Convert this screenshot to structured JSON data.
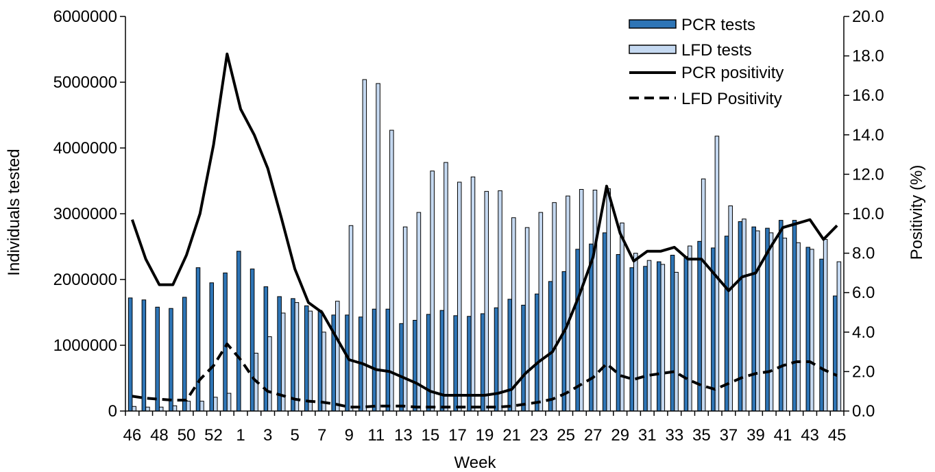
{
  "chart_data": {
    "type": "bar",
    "title": "",
    "xlabel": "Week",
    "ylabel": "Individuals tested",
    "y2label": "Positivity (%)",
    "ylim": [
      0,
      6000000
    ],
    "y2lim": [
      0,
      20
    ],
    "yticks": [
      0,
      1000000,
      2000000,
      3000000,
      4000000,
      5000000,
      6000000
    ],
    "y2ticks": [
      "0.0",
      "2.0",
      "4.0",
      "6.0",
      "8.0",
      "10.0",
      "12.0",
      "14.0",
      "16.0",
      "18.0",
      "20.0"
    ],
    "legend_position": "top-right",
    "categories": [
      "46",
      "47",
      "48",
      "49",
      "50",
      "51",
      "52",
      "53",
      "1",
      "2",
      "3",
      "4",
      "5",
      "6",
      "7",
      "8",
      "9",
      "10",
      "11",
      "12",
      "13",
      "14",
      "15",
      "16",
      "17",
      "18",
      "19",
      "20",
      "21",
      "22",
      "23",
      "24",
      "25",
      "26",
      "27",
      "28",
      "29",
      "30",
      "31",
      "32",
      "33",
      "34",
      "35",
      "36",
      "37",
      "38",
      "39",
      "40",
      "41",
      "42",
      "43",
      "44",
      "45"
    ],
    "series": [
      {
        "name": "PCR tests",
        "kind": "bar",
        "axis": "left",
        "color": "#2e75b6",
        "values": [
          1720000,
          1690000,
          1580000,
          1560000,
          1730000,
          2180000,
          1950000,
          2100000,
          2430000,
          2160000,
          1890000,
          1740000,
          1710000,
          1600000,
          1530000,
          1460000,
          1460000,
          1430000,
          1550000,
          1550000,
          1330000,
          1380000,
          1470000,
          1530000,
          1450000,
          1440000,
          1480000,
          1570000,
          1700000,
          1610000,
          1780000,
          1970000,
          2120000,
          2460000,
          2540000,
          2710000,
          2380000,
          2180000,
          2200000,
          2270000,
          2370000,
          2350000,
          2580000,
          2480000,
          2660000,
          2880000,
          2800000,
          2780000,
          2900000,
          2900000,
          2490000,
          2310000,
          1750000
        ]
      },
      {
        "name": "LFD tests",
        "kind": "bar",
        "axis": "left",
        "color": "#c5d9f1",
        "values": [
          70000,
          60000,
          60000,
          80000,
          150000,
          150000,
          210000,
          270000,
          0,
          880000,
          1130000,
          1490000,
          1650000,
          1520000,
          1200000,
          1670000,
          2820000,
          5040000,
          4980000,
          4270000,
          2800000,
          3020000,
          3650000,
          3780000,
          3480000,
          3560000,
          3340000,
          3350000,
          2940000,
          2790000,
          3020000,
          3170000,
          3270000,
          3370000,
          3360000,
          3380000,
          2860000,
          2400000,
          2290000,
          2230000,
          2110000,
          2510000,
          3530000,
          4180000,
          3120000,
          2920000,
          2740000,
          2710000,
          2630000,
          2560000,
          2460000,
          2610000,
          2270000
        ]
      },
      {
        "name": "PCR positivity",
        "kind": "line",
        "axis": "right",
        "color": "#000000",
        "dash": "solid",
        "values": [
          9.7,
          7.7,
          6.4,
          6.4,
          7.9,
          10.0,
          13.5,
          18.1,
          15.3,
          14.0,
          12.3,
          9.8,
          7.2,
          5.5,
          5.0,
          3.8,
          2.6,
          2.4,
          2.1,
          2.0,
          1.7,
          1.4,
          1.0,
          0.8,
          0.8,
          0.8,
          0.8,
          0.9,
          1.1,
          1.9,
          2.5,
          3.0,
          4.2,
          5.9,
          7.8,
          11.4,
          9.0,
          7.6,
          8.1,
          8.1,
          8.3,
          7.7,
          7.7,
          6.9,
          6.1,
          6.8,
          7.0,
          8.2,
          9.3,
          9.5,
          9.7,
          8.7,
          9.4
        ]
      },
      {
        "name": "LFD Positivity",
        "kind": "line",
        "axis": "right",
        "color": "#000000",
        "dash": "dashed",
        "values": [
          0.75,
          0.65,
          0.6,
          0.55,
          0.55,
          1.6,
          2.3,
          3.4,
          2.6,
          1.6,
          1.0,
          0.8,
          0.6,
          0.5,
          0.45,
          0.35,
          0.2,
          0.2,
          0.25,
          0.25,
          0.25,
          0.2,
          0.2,
          0.2,
          0.2,
          0.2,
          0.2,
          0.2,
          0.25,
          0.35,
          0.45,
          0.6,
          0.9,
          1.3,
          1.7,
          2.4,
          1.8,
          1.6,
          1.8,
          1.9,
          2.0,
          1.6,
          1.3,
          1.1,
          1.4,
          1.7,
          1.9,
          2.0,
          2.3,
          2.5,
          2.5,
          2.1,
          1.8
        ]
      }
    ],
    "xtick_labels": [
      "46",
      "",
      "48",
      "",
      "50",
      "",
      "52",
      "",
      "1",
      "",
      "3",
      "",
      "5",
      "",
      "7",
      "",
      "9",
      "",
      "11",
      "",
      "13",
      "",
      "15",
      "",
      "17",
      "",
      "19",
      "",
      "21",
      "",
      "23",
      "",
      "25",
      "",
      "27",
      "",
      "29",
      "",
      "31",
      "",
      "33",
      "",
      "35",
      "",
      "37",
      "",
      "39",
      "",
      "41",
      "",
      "43",
      "",
      "45"
    ]
  }
}
